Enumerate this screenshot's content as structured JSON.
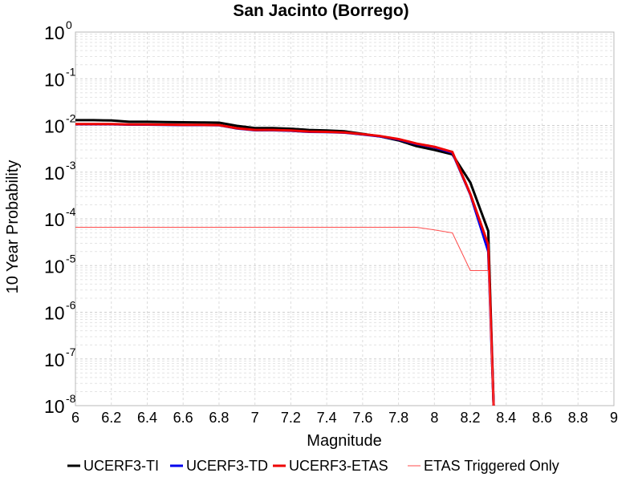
{
  "chart_data": {
    "type": "line",
    "title": "San Jacinto (Borrego)",
    "xlabel": "Magnitude",
    "ylabel": "10 Year Probability",
    "xlim": [
      6,
      9
    ],
    "ylim": [
      1e-08,
      1
    ],
    "yscale": "log",
    "grid": true,
    "legend": "bottom",
    "x_ticks": [
      "6",
      "6.2",
      "6.4",
      "6.6",
      "6.8",
      "7",
      "7.2",
      "7.4",
      "7.6",
      "7.8",
      "8",
      "8.2",
      "8.4",
      "8.6",
      "8.8",
      "9"
    ],
    "y_ticks": [
      {
        "base": "10",
        "exp": "0"
      },
      {
        "base": "10",
        "exp": "-1"
      },
      {
        "base": "10",
        "exp": "-2"
      },
      {
        "base": "10",
        "exp": "-3"
      },
      {
        "base": "10",
        "exp": "-4"
      },
      {
        "base": "10",
        "exp": "-5"
      },
      {
        "base": "10",
        "exp": "-6"
      },
      {
        "base": "10",
        "exp": "-7"
      },
      {
        "base": "10",
        "exp": "-8"
      }
    ],
    "series": [
      {
        "name": "UCERF3-TI",
        "color": "#000000",
        "width": 3,
        "x": [
          6.0,
          6.1,
          6.2,
          6.3,
          6.4,
          6.5,
          6.6,
          6.7,
          6.8,
          6.9,
          7.0,
          7.1,
          7.2,
          7.3,
          7.4,
          7.5,
          7.6,
          7.7,
          7.8,
          7.9,
          8.0,
          8.1,
          8.2,
          8.3,
          8.33
        ],
        "y": [
          0.013,
          0.013,
          0.0128,
          0.012,
          0.012,
          0.0118,
          0.0117,
          0.0116,
          0.0115,
          0.0098,
          0.0088,
          0.0088,
          0.0085,
          0.008,
          0.0078,
          0.0075,
          0.0066,
          0.0058,
          0.0048,
          0.0036,
          0.003,
          0.0024,
          0.0006,
          5.5e-05,
          1e-08
        ]
      },
      {
        "name": "UCERF3-TD",
        "color": "#0000ee",
        "width": 3,
        "x": [
          6.0,
          6.1,
          6.2,
          6.3,
          6.4,
          6.5,
          6.6,
          6.7,
          6.8,
          6.9,
          7.0,
          7.1,
          7.2,
          7.3,
          7.4,
          7.5,
          7.6,
          7.7,
          7.8,
          7.9,
          8.0,
          8.1,
          8.2,
          8.3,
          8.33
        ],
        "y": [
          0.0106,
          0.0106,
          0.0106,
          0.0104,
          0.0104,
          0.0103,
          0.0102,
          0.0102,
          0.0101,
          0.0086,
          0.0079,
          0.0079,
          0.0077,
          0.0073,
          0.0072,
          0.007,
          0.0064,
          0.0058,
          0.005,
          0.004,
          0.0034,
          0.0026,
          0.00033,
          2e-05,
          1e-08
        ]
      },
      {
        "name": "UCERF3-ETAS",
        "color": "#ee0000",
        "width": 3,
        "x": [
          6.0,
          6.1,
          6.2,
          6.3,
          6.4,
          6.5,
          6.6,
          6.7,
          6.8,
          6.9,
          7.0,
          7.1,
          7.2,
          7.3,
          7.4,
          7.5,
          7.6,
          7.7,
          7.8,
          7.9,
          8.0,
          8.1,
          8.2,
          8.3,
          8.33
        ],
        "y": [
          0.0107,
          0.0107,
          0.0107,
          0.0105,
          0.0105,
          0.0104,
          0.0103,
          0.0103,
          0.0102,
          0.0087,
          0.008,
          0.008,
          0.0078,
          0.0074,
          0.0073,
          0.0071,
          0.0065,
          0.0059,
          0.0051,
          0.0041,
          0.0035,
          0.0027,
          0.00034,
          2.8e-05,
          1e-08
        ]
      },
      {
        "name": "ETAS Triggered Only",
        "color": "#ff4d4d",
        "width": 1,
        "x": [
          6.0,
          6.5,
          7.0,
          7.5,
          7.9,
          8.0,
          8.1,
          8.2,
          8.3,
          8.33
        ],
        "y": [
          6.6e-05,
          6.6e-05,
          6.6e-05,
          6.6e-05,
          6.6e-05,
          5.8e-05,
          5e-05,
          7.8e-06,
          7.8e-06,
          1e-08
        ]
      }
    ]
  }
}
